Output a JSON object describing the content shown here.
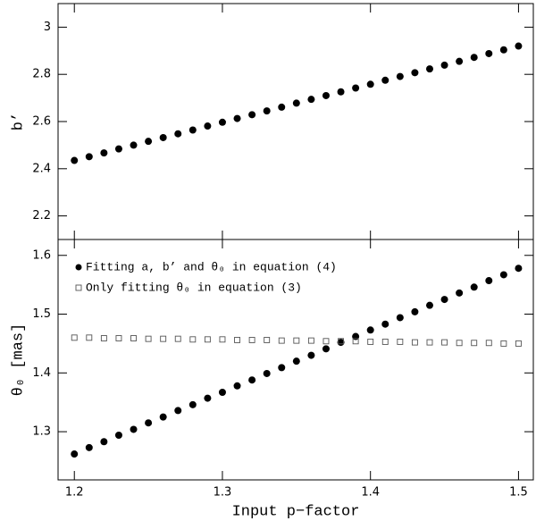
{
  "chart_data": [
    {
      "type": "scatter",
      "y_label": "b’",
      "x": [
        1.2,
        1.21,
        1.22,
        1.23,
        1.24,
        1.25,
        1.26,
        1.27,
        1.28,
        1.29,
        1.3,
        1.31,
        1.32,
        1.33,
        1.34,
        1.35,
        1.36,
        1.37,
        1.38,
        1.39,
        1.4,
        1.41,
        1.42,
        1.43,
        1.44,
        1.45,
        1.46,
        1.47,
        1.48,
        1.49,
        1.5
      ],
      "xlim": [
        1.189,
        1.51
      ],
      "ylim": [
        2.1,
        3.1
      ],
      "yticks": [
        2.2,
        2.4,
        2.6,
        2.8,
        3
      ],
      "series": [
        {
          "color": "#000000",
          "marker": "circle",
          "values": [
            2.435,
            2.451,
            2.467,
            2.484,
            2.5,
            2.516,
            2.532,
            2.548,
            2.564,
            2.581,
            2.597,
            2.613,
            2.629,
            2.645,
            2.661,
            2.678,
            2.694,
            2.71,
            2.726,
            2.742,
            2.758,
            2.775,
            2.791,
            2.807,
            2.823,
            2.839,
            2.855,
            2.872,
            2.888,
            2.904,
            2.92
          ]
        }
      ]
    },
    {
      "type": "scatter",
      "x_label": "Input p−factor",
      "y_label": "θ₀ [mas]",
      "x": [
        1.2,
        1.21,
        1.22,
        1.23,
        1.24,
        1.25,
        1.26,
        1.27,
        1.28,
        1.29,
        1.3,
        1.31,
        1.32,
        1.33,
        1.34,
        1.35,
        1.36,
        1.37,
        1.38,
        1.39,
        1.4,
        1.41,
        1.42,
        1.43,
        1.44,
        1.45,
        1.46,
        1.47,
        1.48,
        1.49,
        1.5
      ],
      "xlim": [
        1.189,
        1.51
      ],
      "xticks": [
        1.2,
        1.3,
        1.4,
        1.5
      ],
      "ylim": [
        1.218,
        1.627
      ],
      "yticks": [
        1.3,
        1.4,
        1.5,
        1.6
      ],
      "legend": "upper left",
      "series": [
        {
          "name": "Fitting a, b’ and θ₀ in equation (4)",
          "color": "#000000",
          "marker": "circle",
          "values": [
            1.262,
            1.273,
            1.283,
            1.294,
            1.304,
            1.315,
            1.325,
            1.336,
            1.346,
            1.357,
            1.367,
            1.378,
            1.388,
            1.399,
            1.409,
            1.42,
            1.43,
            1.441,
            1.452,
            1.462,
            1.473,
            1.483,
            1.494,
            1.504,
            1.515,
            1.525,
            1.536,
            1.546,
            1.557,
            1.567,
            1.578
          ]
        },
        {
          "name": "Only fitting θ₀ in equation (3)",
          "color": "#555555",
          "marker": "square",
          "values": [
            1.46,
            1.46,
            1.459,
            1.459,
            1.459,
            1.458,
            1.458,
            1.458,
            1.457,
            1.457,
            1.457,
            1.456,
            1.456,
            1.456,
            1.455,
            1.455,
            1.455,
            1.454,
            1.454,
            1.454,
            1.453,
            1.453,
            1.453,
            1.452,
            1.452,
            1.452,
            1.451,
            1.451,
            1.451,
            1.45,
            1.45
          ]
        }
      ]
    }
  ]
}
